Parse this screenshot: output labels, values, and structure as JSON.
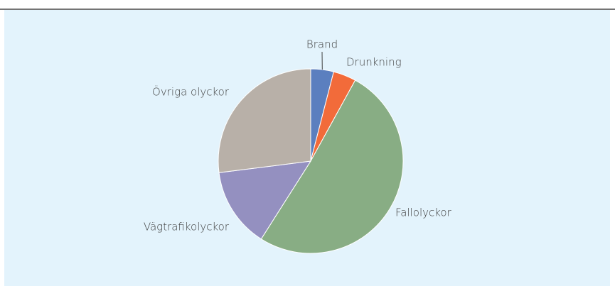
{
  "chart_data": {
    "type": "pie",
    "categories": [
      "Brand",
      "Drunkning",
      "Fallolyckor",
      "Vägtrafikolyckor",
      "Övriga olyckor"
    ],
    "values": [
      4,
      4,
      51,
      14,
      27
    ],
    "colors": [
      "#5b7fbf",
      "#f26b3a",
      "#88ad84",
      "#9490c0",
      "#b8b0a8"
    ]
  }
}
